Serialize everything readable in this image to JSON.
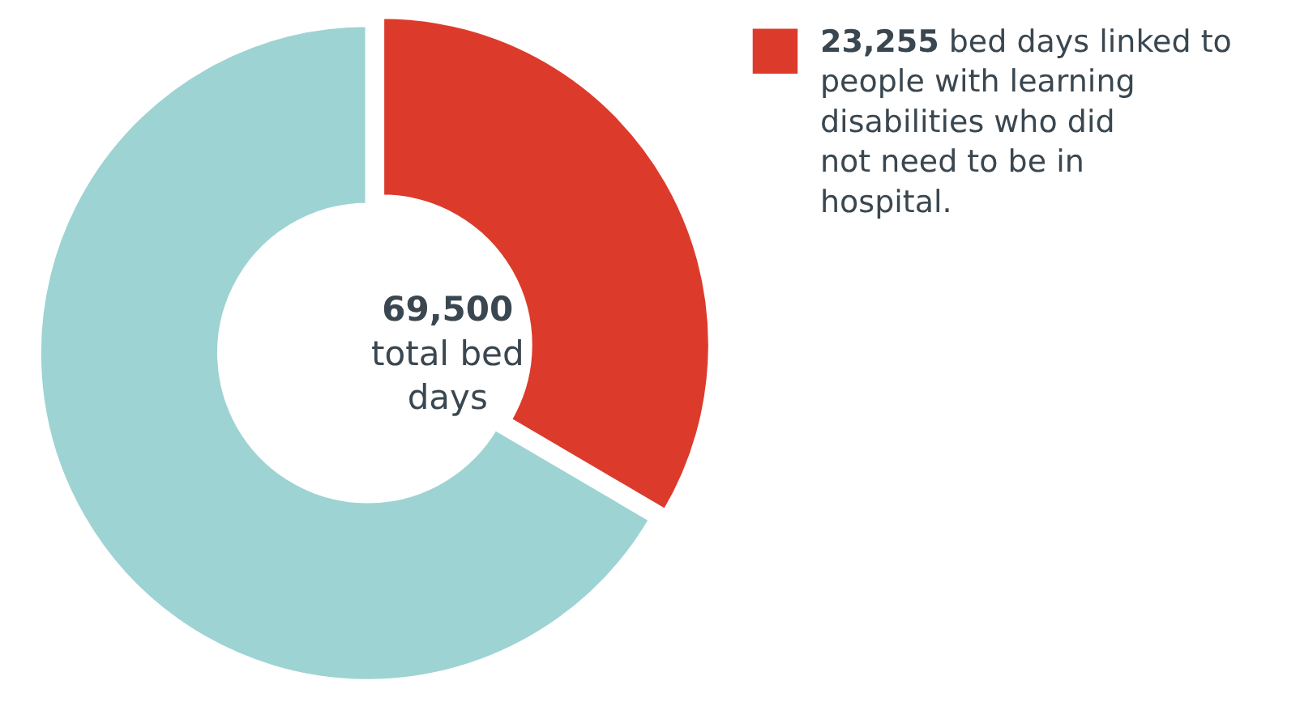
{
  "chart_data": {
    "type": "donut",
    "categories": [
      "23,255 bed days linked to people with learning disabilities who did not need to be in hospital.",
      null
    ],
    "values": [
      23255,
      46245
    ],
    "colors": [
      "#dc3b2c",
      "#9dd3d3"
    ],
    "annotations": [
      "69,500 total bed days"
    ],
    "legend": "top right"
  }
}
